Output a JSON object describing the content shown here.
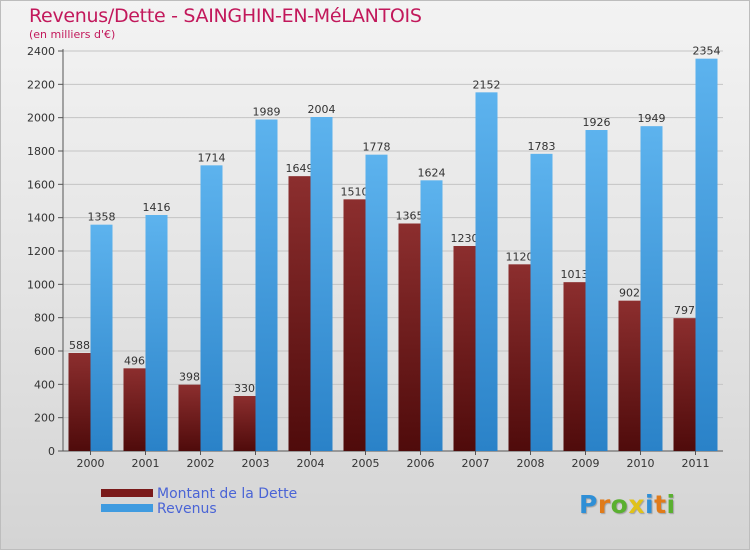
{
  "title": "Revenus/Dette - SAINGHIN-EN-MéLANTOIS",
  "subtitle": "(en milliers d'€)",
  "chart_data": {
    "type": "bar",
    "title": "Revenus/Dette - SAINGHIN-EN-MéLANTOIS",
    "subtitle": "(en milliers d'€)",
    "xlabel": "",
    "ylabel": "",
    "categories": [
      "2000",
      "2001",
      "2002",
      "2003",
      "2004",
      "2005",
      "2006",
      "2007",
      "2008",
      "2009",
      "2010",
      "2011"
    ],
    "series": [
      {
        "name": "Montant de la Dette",
        "color": "#7a1a1a",
        "values": [
          588,
          496,
          398,
          330,
          1649,
          1510,
          1365,
          1230,
          1120,
          1013,
          902,
          797
        ],
        "labels": [
          "588",
          "496",
          "398",
          "330",
          "1649",
          "1510",
          "1365",
          "1230",
          "1120",
          "1013",
          "902",
          "797"
        ]
      },
      {
        "name": "Revenus",
        "color": "#3f9be0",
        "values": [
          1358,
          1416,
          1714,
          1989,
          2004,
          1778,
          1624,
          2152,
          1783,
          1926,
          1949,
          2354
        ],
        "labels": [
          "1358",
          "1416",
          "1714",
          "1989",
          "2004",
          "1778",
          "1624",
          "2152",
          "1783",
          "1926",
          "1949",
          "2354"
        ]
      }
    ],
    "ylim": [
      0,
      2400
    ],
    "yticks": [
      0,
      200,
      400,
      600,
      800,
      1000,
      1200,
      1400,
      1600,
      1800,
      2000,
      2200,
      2400
    ],
    "ytick_labels": [
      "0",
      "200",
      "400",
      "600",
      "800",
      "1000",
      "1200",
      "1400",
      "1600",
      "1800",
      "2000",
      "2200",
      "2400"
    ],
    "grid": true,
    "legend_position": "bottom-left"
  },
  "legend": {
    "items": [
      {
        "label": "Montant de la Dette",
        "color": "#7a1a1a"
      },
      {
        "label": "Revenus",
        "color": "#3f9be0"
      }
    ]
  },
  "logo": {
    "letters": [
      "P",
      "r",
      "o",
      "x",
      "i",
      "t",
      "i"
    ],
    "colors": [
      "#2f8fd6",
      "#e07b1a",
      "#5ab030",
      "#e0c21a",
      "#2f8fd6",
      "#e07b1a",
      "#5ab030"
    ]
  }
}
